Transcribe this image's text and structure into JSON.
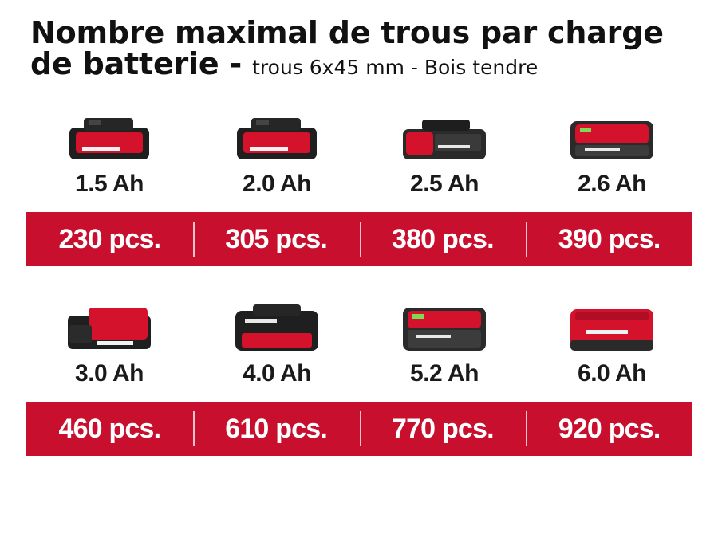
{
  "title": {
    "line1": "Nombre maximal de trous par charge",
    "line2": "de batterie -",
    "subtitle": "trous 6x45 mm - Bois tendre"
  },
  "colors": {
    "accent": "#c8102e",
    "battery_body": "#1f1f1f",
    "battery_red": "#d4122b"
  },
  "rows": [
    {
      "batteries": [
        {
          "capacity": "1.5 Ah",
          "icon": "battery-icon"
        },
        {
          "capacity": "2.0 Ah",
          "icon": "battery-icon"
        },
        {
          "capacity": "2.5 Ah",
          "icon": "battery-icon"
        },
        {
          "capacity": "2.6 Ah",
          "icon": "battery-icon"
        }
      ],
      "values": [
        "230 pcs.",
        "305 pcs.",
        "380 pcs.",
        "390 pcs."
      ]
    },
    {
      "batteries": [
        {
          "capacity": "3.0 Ah",
          "icon": "battery-icon"
        },
        {
          "capacity": "4.0 Ah",
          "icon": "battery-icon"
        },
        {
          "capacity": "5.2 Ah",
          "icon": "battery-icon"
        },
        {
          "capacity": "6.0 Ah",
          "icon": "battery-icon"
        }
      ],
      "values": [
        "460 pcs.",
        "610 pcs.",
        "770 pcs.",
        "920 pcs."
      ]
    }
  ]
}
